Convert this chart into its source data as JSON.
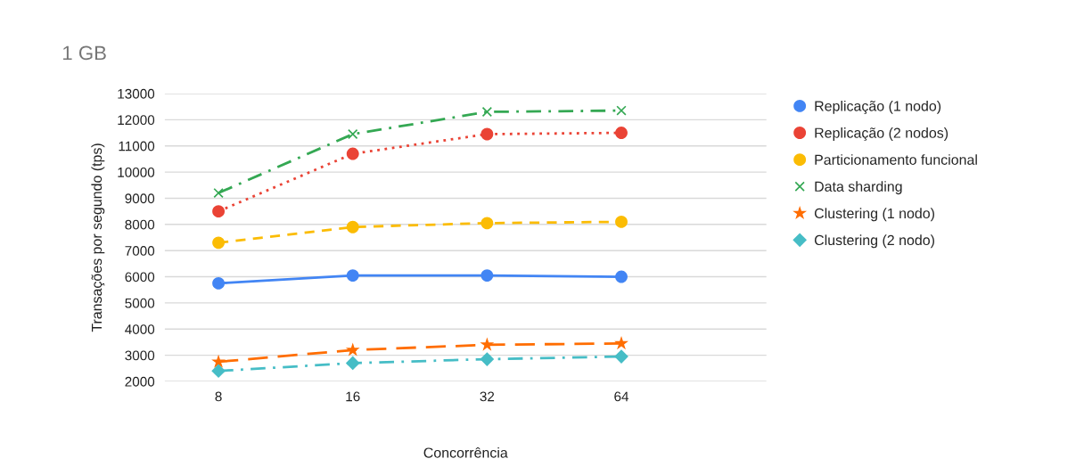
{
  "chart_data": {
    "type": "line",
    "title": "1 GB",
    "xlabel": "Concorrência",
    "ylabel": "Transações por segundo (tps)",
    "categories": [
      "8",
      "16",
      "32",
      "64"
    ],
    "series": [
      {
        "name": "Replicação (1 nodo)",
        "color": "#4285f4",
        "marker": "circle",
        "line_style": "solid",
        "values": [
          5750,
          6050,
          6050,
          6000
        ]
      },
      {
        "name": "Replicação (2 nodos)",
        "color": "#ea4335",
        "marker": "circle",
        "line_style": "dotted",
        "values": [
          8500,
          10700,
          11450,
          11500
        ]
      },
      {
        "name": "Particionamento funcional",
        "color": "#fbbc04",
        "marker": "circle",
        "line_style": "dashed",
        "values": [
          7300,
          7900,
          8050,
          8100
        ]
      },
      {
        "name": "Data sharding",
        "color": "#34a853",
        "marker": "cross",
        "line_style": "dashdot",
        "values": [
          9200,
          11450,
          12300,
          12350
        ]
      },
      {
        "name": "Clustering (1 nodo)",
        "color": "#ff6d01",
        "marker": "star",
        "line_style": "longdash",
        "values": [
          2750,
          3200,
          3400,
          3450
        ]
      },
      {
        "name": "Clustering (2 nodo)",
        "color": "#46bdc6",
        "marker": "diamond",
        "line_style": "dashdot",
        "values": [
          2400,
          2700,
          2850,
          2950
        ]
      }
    ],
    "ylim": [
      2000,
      13000
    ],
    "yticks": [
      2000,
      3000,
      4000,
      5000,
      6000,
      7000,
      8000,
      9000,
      10000,
      11000,
      12000,
      13000
    ],
    "grid": "y",
    "legend": "right"
  }
}
